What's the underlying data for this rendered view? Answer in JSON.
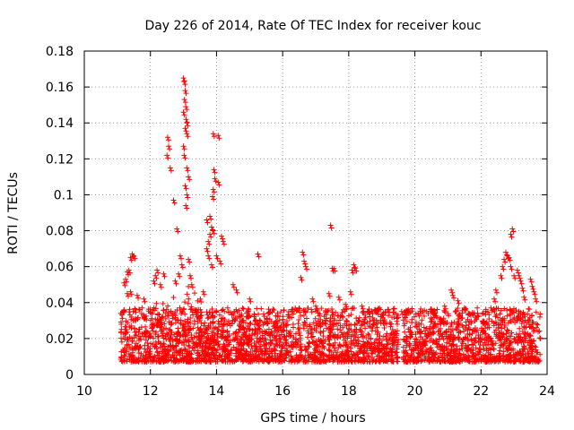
{
  "chart_data": {
    "type": "scatter",
    "title": "Day 226 of 2014, Rate Of TEC Index for receiver kouc",
    "xlabel": "GPS time / hours",
    "ylabel": "ROTI / TECUs",
    "xlim": [
      10,
      24
    ],
    "ylim": [
      0,
      0.18
    ],
    "x_ticks": [
      10,
      12,
      14,
      16,
      18,
      20,
      22,
      24
    ],
    "y_ticks": [
      0,
      0.02,
      0.04,
      0.06,
      0.08,
      0.1,
      0.12,
      0.14,
      0.16,
      0.18
    ],
    "x_tick_labels": [
      "10",
      "12",
      "14",
      "16",
      "18",
      "20",
      "22",
      "24"
    ],
    "y_tick_labels": [
      "0",
      "0.02",
      "0.04",
      "0.06",
      "0.08",
      "0.1",
      "0.12",
      "0.14",
      "0.16",
      "0.18"
    ],
    "grid": true,
    "marker": "+",
    "marker_color": "#ff0000",
    "data_range_x": [
      11.1,
      23.8
    ],
    "series": [
      {
        "name": "ROTI",
        "baseline_band": [
          0.005,
          0.035
        ],
        "points": [
          [
            11.2,
            0.051
          ],
          [
            11.25,
            0.053
          ],
          [
            11.3,
            0.057
          ],
          [
            11.35,
            0.058
          ],
          [
            11.4,
            0.065
          ],
          [
            11.45,
            0.067
          ],
          [
            11.5,
            0.066
          ],
          [
            11.3,
            0.045
          ],
          [
            11.4,
            0.046
          ],
          [
            11.6,
            0.044
          ],
          [
            11.8,
            0.042
          ],
          [
            12.1,
            0.052
          ],
          [
            12.15,
            0.055
          ],
          [
            12.2,
            0.058
          ],
          [
            12.3,
            0.05
          ],
          [
            12.4,
            0.056
          ],
          [
            12.5,
            0.122
          ],
          [
            12.52,
            0.132
          ],
          [
            12.55,
            0.127
          ],
          [
            12.6,
            0.115
          ],
          [
            12.7,
            0.097
          ],
          [
            12.8,
            0.081
          ],
          [
            12.9,
            0.066
          ],
          [
            12.95,
            0.061
          ],
          [
            12.85,
            0.056
          ],
          [
            12.75,
            0.052
          ],
          [
            13.0,
            0.165
          ],
          [
            13.02,
            0.163
          ],
          [
            13.05,
            0.158
          ],
          [
            13.03,
            0.153
          ],
          [
            13.07,
            0.149
          ],
          [
            13.0,
            0.146
          ],
          [
            13.08,
            0.142
          ],
          [
            13.1,
            0.14
          ],
          [
            13.05,
            0.137
          ],
          [
            13.1,
            0.134
          ],
          [
            13.0,
            0.127
          ],
          [
            13.02,
            0.122
          ],
          [
            13.1,
            0.115
          ],
          [
            13.15,
            0.11
          ],
          [
            13.05,
            0.105
          ],
          [
            13.1,
            0.1
          ],
          [
            13.07,
            0.094
          ],
          [
            13.15,
            0.064
          ],
          [
            13.2,
            0.055
          ],
          [
            13.25,
            0.05
          ],
          [
            13.6,
            0.046
          ],
          [
            13.7,
            0.07
          ],
          [
            13.75,
            0.074
          ],
          [
            13.8,
            0.078
          ],
          [
            13.85,
            0.082
          ],
          [
            13.7,
            0.086
          ],
          [
            13.8,
            0.088
          ],
          [
            13.9,
            0.08
          ],
          [
            13.75,
            0.066
          ],
          [
            13.85,
            0.061
          ],
          [
            13.9,
            0.134
          ],
          [
            14.05,
            0.133
          ],
          [
            13.92,
            0.114
          ],
          [
            13.95,
            0.109
          ],
          [
            14.05,
            0.107
          ],
          [
            13.9,
            0.103
          ],
          [
            13.88,
            0.099
          ],
          [
            14.0,
            0.066
          ],
          [
            14.1,
            0.063
          ],
          [
            14.15,
            0.077
          ],
          [
            14.2,
            0.074
          ],
          [
            14.5,
            0.05
          ],
          [
            14.6,
            0.047
          ],
          [
            15.25,
            0.067
          ],
          [
            15.0,
            0.042
          ],
          [
            16.6,
            0.068
          ],
          [
            16.65,
            0.063
          ],
          [
            16.7,
            0.06
          ],
          [
            16.55,
            0.054
          ],
          [
            16.9,
            0.042
          ],
          [
            17.0,
            0.038
          ],
          [
            17.45,
            0.083
          ],
          [
            17.5,
            0.059
          ],
          [
            17.55,
            0.059
          ],
          [
            17.4,
            0.045
          ],
          [
            17.7,
            0.043
          ],
          [
            17.9,
            0.039
          ],
          [
            18.1,
            0.058
          ],
          [
            18.15,
            0.061
          ],
          [
            18.2,
            0.059
          ],
          [
            18.05,
            0.046
          ],
          [
            18.4,
            0.038
          ],
          [
            18.8,
            0.036
          ],
          [
            19.2,
            0.036
          ],
          [
            19.6,
            0.035
          ],
          [
            20.1,
            0.034
          ],
          [
            20.5,
            0.036
          ],
          [
            20.9,
            0.038
          ],
          [
            21.1,
            0.047
          ],
          [
            21.15,
            0.044
          ],
          [
            21.3,
            0.041
          ],
          [
            21.5,
            0.037
          ],
          [
            21.9,
            0.034
          ],
          [
            22.3,
            0.037
          ],
          [
            22.4,
            0.042
          ],
          [
            22.45,
            0.047
          ],
          [
            22.6,
            0.055
          ],
          [
            22.65,
            0.06
          ],
          [
            22.7,
            0.064
          ],
          [
            22.75,
            0.068
          ],
          [
            22.8,
            0.066
          ],
          [
            22.85,
            0.065
          ],
          [
            22.9,
            0.078
          ],
          [
            22.95,
            0.081
          ],
          [
            22.9,
            0.06
          ],
          [
            23.0,
            0.055
          ],
          [
            23.1,
            0.058
          ],
          [
            23.15,
            0.055
          ],
          [
            23.2,
            0.052
          ],
          [
            23.25,
            0.048
          ],
          [
            23.3,
            0.043
          ],
          [
            23.5,
            0.053
          ],
          [
            23.55,
            0.049
          ],
          [
            23.6,
            0.046
          ],
          [
            23.65,
            0.042
          ]
        ]
      }
    ]
  }
}
